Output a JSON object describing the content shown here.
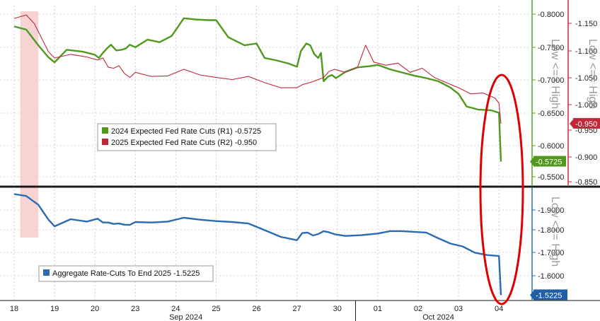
{
  "chart_data": [
    {
      "type": "line",
      "panel": "top",
      "legend": [
        {
          "label": "2024 Expected Fed Rate Cuts (R1) -0.5725",
          "color": "#4f9a1e"
        },
        {
          "label": "2025 Expected Fed Rate Cuts (R2) -0.950",
          "color": "#c0283a"
        }
      ],
      "axes": {
        "R1": {
          "ticks": [
            "-0.8000",
            "-0.7500",
            "-0.7000",
            "-0.6500",
            "-0.6000",
            "-0.5500"
          ],
          "range": [
            -0.82,
            -0.535
          ],
          "color": "#5aa21f",
          "title": "Low <== High"
        },
        "R2": {
          "ticks": [
            "-1.150",
            "-1.100",
            "-1.050",
            "-1.000",
            "-0.950",
            "-0.900",
            "-0.850"
          ],
          "range": [
            -1.18,
            -0.83
          ],
          "color": "#d0283a",
          "title": "Low <== High"
        }
      },
      "last_value_tags": [
        {
          "text": "-0.950",
          "color": "#c0283a",
          "axis": "R2",
          "value": -0.95
        },
        {
          "text": "-0.5725",
          "color": "#4f9a1e",
          "axis": "R1",
          "value": -0.5725
        }
      ],
      "series": [
        {
          "name": "2024 Expected Fed Rate Cuts (R1)",
          "axis": "R1",
          "color": "#4f9a1e",
          "points": [
            [
              18,
              -0.787
            ],
            [
              18.3,
              -0.782
            ],
            [
              18.6,
              -0.757
            ],
            [
              18.85,
              -0.738
            ],
            [
              19,
              -0.73
            ],
            [
              19.3,
              -0.75
            ],
            [
              19.7,
              -0.747
            ],
            [
              20,
              -0.742
            ],
            [
              20.3,
              -0.737
            ],
            [
              20.6,
              -0.745
            ],
            [
              20.9,
              -0.752
            ],
            [
              21.2,
              -0.758
            ],
            [
              21.6,
              -0.749
            ],
            [
              22,
              -0.75
            ],
            [
              22.3,
              -0.752
            ],
            [
              22.6,
              -0.758
            ],
            [
              23,
              -0.754
            ],
            [
              23.3,
              -0.766
            ],
            [
              23.6,
              -0.762
            ],
            [
              23.9,
              -0.772
            ],
            [
              24.2,
              -0.8
            ],
            [
              24.5,
              -0.798
            ],
            [
              24.8,
              -0.797
            ],
            [
              25,
              -0.797
            ],
            [
              25.3,
              -0.77
            ],
            [
              25.7,
              -0.757
            ],
            [
              26,
              -0.76
            ],
            [
              26.2,
              -0.737
            ],
            [
              26.5,
              -0.733
            ],
            [
              26.8,
              -0.728
            ],
            [
              27,
              -0.723
            ],
            [
              27.3,
              -0.748
            ],
            [
              27.7,
              -0.76
            ],
            [
              28,
              -0.757
            ],
            [
              28.3,
              -0.743
            ],
            [
              28.6,
              -0.737
            ],
            [
              28.8,
              -0.745
            ],
            [
              29,
              -0.7
            ],
            [
              29.3,
              -0.707
            ],
            [
              29.6,
              -0.71
            ],
            [
              29.9,
              -0.705
            ],
            [
              30.2,
              -0.715
            ],
            [
              30.5,
              -0.722
            ],
            [
              30.8,
              -0.724
            ],
            [
              31,
              -0.726
            ],
            [
              31.3,
              -0.719
            ],
            [
              31.6,
              -0.714
            ],
            [
              31.9,
              -0.709
            ],
            [
              32.2,
              -0.705
            ],
            [
              32.5,
              -0.7
            ],
            [
              32.8,
              -0.69
            ],
            [
              33,
              -0.68
            ],
            [
              33.2,
              -0.66
            ],
            [
              33.5,
              -0.655
            ],
            [
              33.8,
              -0.654
            ],
            [
              34,
              -0.65
            ],
            [
              34.05,
              -0.5725
            ]
          ]
        },
        {
          "name": "2025 Expected Fed Rate Cuts (R2)",
          "axis": "R2",
          "color": "#c0283a",
          "points": [
            [
              18,
              -1.155
            ],
            [
              18.3,
              -1.162
            ],
            [
              18.5,
              -1.145
            ],
            [
              18.85,
              -1.09
            ],
            [
              19,
              -1.078
            ],
            [
              19.4,
              -1.085
            ],
            [
              19.8,
              -1.08
            ],
            [
              20.2,
              -1.074
            ],
            [
              20.6,
              -1.078
            ],
            [
              21,
              -1.06
            ],
            [
              21.4,
              -1.058
            ],
            [
              21.8,
              -1.063
            ],
            [
              22.2,
              -1.048
            ],
            [
              22.6,
              -1.04
            ],
            [
              23,
              -1.05
            ],
            [
              23.4,
              -1.042
            ],
            [
              23.8,
              -1.043
            ],
            [
              24.2,
              -1.056
            ],
            [
              24.6,
              -1.045
            ],
            [
              25,
              -1.04
            ],
            [
              25.4,
              -1.036
            ],
            [
              25.8,
              -1.042
            ],
            [
              26.2,
              -1.03
            ],
            [
              26.6,
              -1.02
            ],
            [
              27,
              -1.02
            ],
            [
              27.4,
              -1.026
            ],
            [
              27.8,
              -1.029
            ],
            [
              28.2,
              -1.032
            ],
            [
              28.6,
              -1.036
            ],
            [
              29,
              -1.04
            ],
            [
              29.4,
              -1.052
            ],
            [
              29.8,
              -1.056
            ],
            [
              30.2,
              -1.05
            ],
            [
              30.5,
              -1.06
            ],
            [
              30.7,
              -1.103
            ],
            [
              30.9,
              -1.07
            ],
            [
              31.2,
              -1.064
            ],
            [
              31.5,
              -1.068
            ],
            [
              31.8,
              -1.05
            ],
            [
              32.1,
              -1.058
            ],
            [
              32.4,
              -1.04
            ],
            [
              32.7,
              -1.03
            ],
            [
              33,
              -1.02
            ],
            [
              33.3,
              -1.008
            ],
            [
              33.6,
              -1.01
            ],
            [
              33.9,
              -1.0
            ],
            [
              34.0,
              -0.99
            ],
            [
              34.05,
              -0.95
            ]
          ]
        }
      ]
    },
    {
      "type": "line",
      "panel": "bottom",
      "legend": [
        {
          "label": "Aggregate Rate-Cuts To End 2025 -1.5225",
          "color": "#2b6cb0"
        }
      ],
      "axes": {
        "R1": {
          "ticks": [
            "-1.9000",
            "-1.8000",
            "-1.7000",
            "-1.6000"
          ],
          "range": [
            -1.97,
            -1.5
          ],
          "color": "#2b6cb0",
          "title": "Low <== High"
        }
      },
      "last_value_tags": [
        {
          "text": "-1.5225",
          "color": "#1f5fa8",
          "axis": "R1",
          "value": -1.5225
        }
      ],
      "series": [
        {
          "name": "Aggregate Rate-Cuts To End 2025",
          "axis": "R1",
          "color": "#2b6cb0",
          "points": [
            [
              18,
              -1.945
            ],
            [
              18.3,
              -1.937
            ],
            [
              18.6,
              -1.9
            ],
            [
              18.85,
              -1.838
            ],
            [
              19,
              -1.81
            ],
            [
              19.4,
              -1.84
            ],
            [
              19.8,
              -1.83
            ],
            [
              20.2,
              -1.842
            ],
            [
              20.6,
              -1.826
            ],
            [
              21,
              -1.826
            ],
            [
              21.4,
              -1.82
            ],
            [
              21.8,
              -1.822
            ],
            [
              22.2,
              -1.817
            ],
            [
              22.6,
              -1.816
            ],
            [
              23,
              -1.828
            ],
            [
              23.4,
              -1.826
            ],
            [
              23.8,
              -1.83
            ],
            [
              24.2,
              -1.846
            ],
            [
              24.6,
              -1.838
            ],
            [
              25,
              -1.832
            ],
            [
              25.4,
              -1.828
            ],
            [
              25.8,
              -1.822
            ],
            [
              26.2,
              -1.794
            ],
            [
              26.6,
              -1.766
            ],
            [
              27,
              -1.752
            ],
            [
              27.4,
              -1.782
            ],
            [
              27.8,
              -1.784
            ],
            [
              28.2,
              -1.772
            ],
            [
              28.6,
              -1.778
            ],
            [
              29,
              -1.79
            ],
            [
              29.4,
              -1.785
            ],
            [
              29.8,
              -1.777
            ],
            [
              30.2,
              -1.77
            ],
            [
              30.6,
              -1.773
            ],
            [
              31,
              -1.78
            ],
            [
              31.3,
              -1.79
            ],
            [
              31.6,
              -1.79
            ],
            [
              31.9,
              -1.787
            ],
            [
              32.2,
              -1.784
            ],
            [
              32.5,
              -1.76
            ],
            [
              32.8,
              -1.738
            ],
            [
              33.1,
              -1.726
            ],
            [
              33.4,
              -1.7
            ],
            [
              33.7,
              -1.69
            ],
            [
              34.0,
              -1.686
            ],
            [
              34.05,
              -1.5225
            ]
          ]
        }
      ]
    }
  ],
  "x_axis": {
    "ticks": [
      {
        "label": "18",
        "x": 18
      },
      {
        "label": "19",
        "x": 19
      },
      {
        "label": "20",
        "x": 20
      },
      {
        "label": "23",
        "x": 21
      },
      {
        "label": "24",
        "x": 22
      },
      {
        "label": "25",
        "x": 23
      },
      {
        "label": "26",
        "x": 24
      },
      {
        "label": "27",
        "x": 25
      },
      {
        "label": "30",
        "x": 26
      },
      {
        "label": "01",
        "x": 27
      },
      {
        "label": "02",
        "x": 28
      },
      {
        "label": "03",
        "x": 29
      },
      {
        "label": "04",
        "x": 30
      }
    ],
    "months": [
      {
        "label": "Sep 2024",
        "x": 22.25
      },
      {
        "label": "Oct 2024",
        "x": 28.5
      }
    ]
  },
  "shaded_band": {
    "from": 18.15,
    "to": 18.6,
    "color": "#f4b6b8"
  },
  "highlight_ellipse": {
    "color": "#e00000"
  }
}
